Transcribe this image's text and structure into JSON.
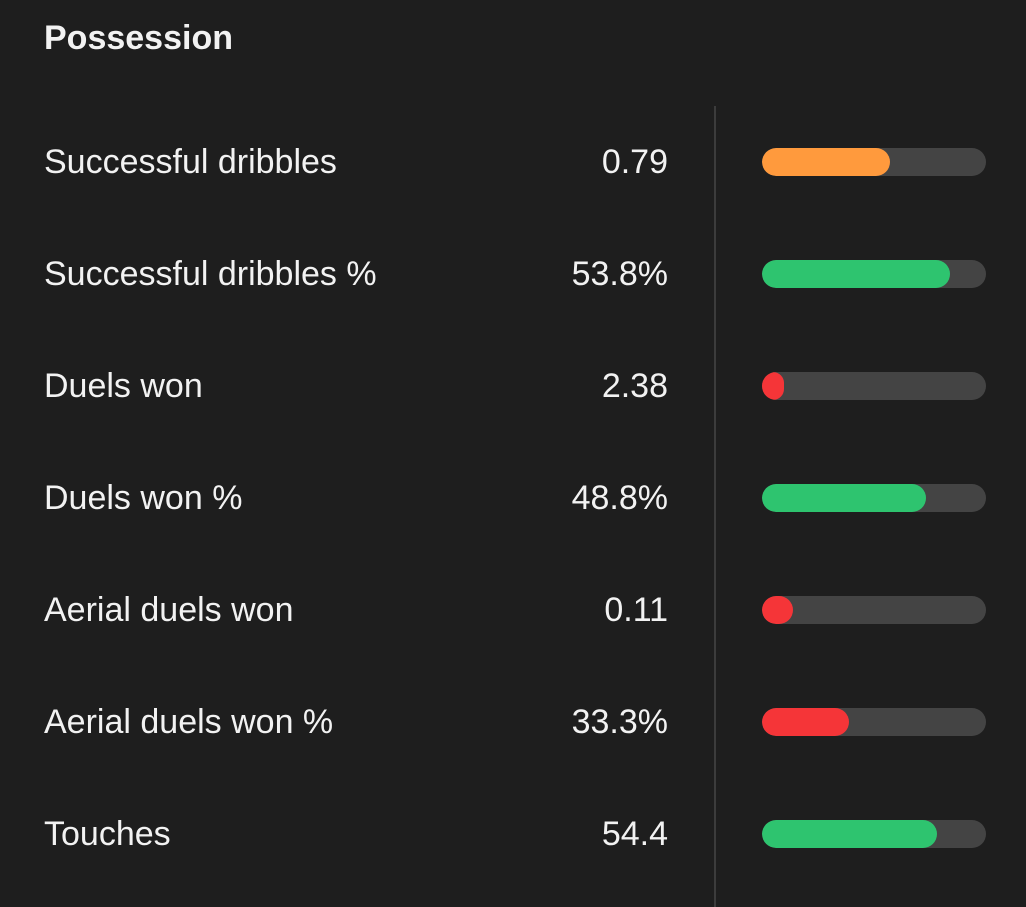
{
  "section": {
    "title": "Possession"
  },
  "colors": {
    "good": "#2ec46f",
    "average": "#ff9a3d",
    "poor": "#f53538",
    "track": "#444444"
  },
  "stats": [
    {
      "label": "Successful dribbles",
      "value": "0.79",
      "rating": "average",
      "bar_fraction": 0.57
    },
    {
      "label": "Successful dribbles %",
      "value": "53.8%",
      "rating": "good",
      "bar_fraction": 0.84
    },
    {
      "label": "Duels won",
      "value": "2.38",
      "rating": "poor",
      "bar_fraction": 0.1
    },
    {
      "label": "Duels won %",
      "value": "48.8%",
      "rating": "good",
      "bar_fraction": 0.73
    },
    {
      "label": "Aerial duels won",
      "value": "0.11",
      "rating": "poor",
      "bar_fraction": 0.14
    },
    {
      "label": "Aerial duels won %",
      "value": "33.3%",
      "rating": "poor",
      "bar_fraction": 0.39
    },
    {
      "label": "Touches",
      "value": "54.4",
      "rating": "good",
      "bar_fraction": 0.78
    }
  ]
}
